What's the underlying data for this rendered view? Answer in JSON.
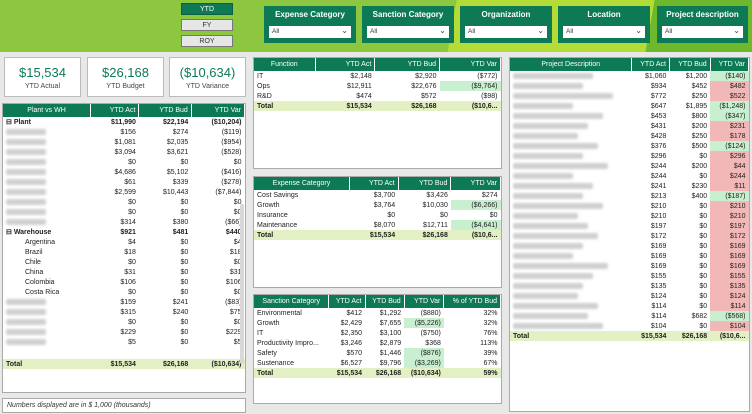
{
  "period_buttons": [
    "YTD",
    "FY",
    "ROY"
  ],
  "slicers": [
    {
      "title": "Expense Category",
      "value": "All"
    },
    {
      "title": "Sanction Category",
      "value": "All"
    },
    {
      "title": "Organization",
      "value": "All"
    },
    {
      "title": "Location",
      "value": "All"
    },
    {
      "title": "Project description",
      "value": "All"
    }
  ],
  "cards": [
    {
      "value": "$15,534",
      "label": "YTD Actual"
    },
    {
      "value": "$26,168",
      "label": "YTD Budget"
    },
    {
      "value": "($10,634)",
      "label": "YTD Variance"
    }
  ],
  "plant_table": {
    "headers": [
      "Plant vs WH",
      "YTD Act",
      "YTD Bud",
      "YTD Var"
    ],
    "rows": [
      {
        "label": "Plant",
        "act": "$11,990",
        "bud": "$22,194",
        "var": "($10,204)",
        "group": true
      },
      {
        "label": "",
        "act": "$156",
        "bud": "$274",
        "var": "($119)"
      },
      {
        "label": "",
        "act": "$1,081",
        "bud": "$2,035",
        "var": "($954)"
      },
      {
        "label": "",
        "act": "$3,094",
        "bud": "$3,621",
        "var": "($528)"
      },
      {
        "label": "",
        "act": "$0",
        "bud": "$0",
        "var": "$0"
      },
      {
        "label": "",
        "act": "$4,686",
        "bud": "$5,102",
        "var": "($416)"
      },
      {
        "label": "",
        "act": "$61",
        "bud": "$339",
        "var": "($278)"
      },
      {
        "label": "",
        "act": "$2,599",
        "bud": "$10,443",
        "var": "($7,844)"
      },
      {
        "label": "",
        "act": "$0",
        "bud": "$0",
        "var": "$0"
      },
      {
        "label": "",
        "act": "$0",
        "bud": "$0",
        "var": "$0"
      },
      {
        "label": "",
        "act": "$314",
        "bud": "$380",
        "var": "($66)"
      },
      {
        "label": "Warehouse",
        "act": "$921",
        "bud": "$481",
        "var": "$440",
        "group": true
      },
      {
        "label": "Argentina",
        "act": "$4",
        "bud": "$0",
        "var": "$4"
      },
      {
        "label": "Brazil",
        "act": "$18",
        "bud": "$0",
        "var": "$18"
      },
      {
        "label": "Chile",
        "act": "$0",
        "bud": "$0",
        "var": "$0"
      },
      {
        "label": "China",
        "act": "$31",
        "bud": "$0",
        "var": "$31"
      },
      {
        "label": "Colombia",
        "act": "$106",
        "bud": "$0",
        "var": "$106"
      },
      {
        "label": "Costa Rica",
        "act": "$0",
        "bud": "$0",
        "var": "$0"
      },
      {
        "label": "",
        "act": "$159",
        "bud": "$241",
        "var": "($83)"
      },
      {
        "label": "",
        "act": "$315",
        "bud": "$240",
        "var": "$75"
      },
      {
        "label": "",
        "act": "$0",
        "bud": "$0",
        "var": "$0"
      },
      {
        "label": "",
        "act": "$229",
        "bud": "$0",
        "var": "$229"
      },
      {
        "label": "",
        "act": "$5",
        "bud": "$0",
        "var": "$5"
      }
    ],
    "total": {
      "label": "Total",
      "act": "$15,534",
      "bud": "$26,168",
      "var": "($10,634)"
    }
  },
  "function_table": {
    "headers": [
      "Function",
      "YTD Act",
      "YTD Bud",
      "YTD Var"
    ],
    "rows": [
      {
        "label": "IT",
        "act": "$2,148",
        "bud": "$2,920",
        "var": "($772)"
      },
      {
        "label": "Ops",
        "act": "$12,911",
        "bud": "$22,676",
        "var": "($9,764)"
      },
      {
        "label": "R&D",
        "act": "$474",
        "bud": "$572",
        "var": "($98)"
      }
    ],
    "total": {
      "label": "Total",
      "act": "$15,534",
      "bud": "$26,168",
      "var": "($10,6..."
    }
  },
  "expense_table": {
    "headers": [
      "Expense Category",
      "YTD Act",
      "YTD Bud",
      "YTD Var"
    ],
    "rows": [
      {
        "label": "Cost Savings",
        "act": "$3,700",
        "bud": "$3,426",
        "var": "$274"
      },
      {
        "label": "Growth",
        "act": "$3,764",
        "bud": "$10,030",
        "var": "($6,266)"
      },
      {
        "label": "Insurance",
        "act": "$0",
        "bud": "$0",
        "var": "$0"
      },
      {
        "label": "Maintenance",
        "act": "$8,070",
        "bud": "$12,711",
        "var": "($4,641)"
      }
    ],
    "total": {
      "label": "Total",
      "act": "$15,534",
      "bud": "$26,168",
      "var": "($10,6..."
    }
  },
  "sanction_table": {
    "headers": [
      "Sanction Category",
      "YTD Act",
      "YTD Bud",
      "YTD Var",
      "% of YTD Bud"
    ],
    "rows": [
      {
        "label": "Environmental",
        "act": "$412",
        "bud": "$1,292",
        "var": "($880)",
        "pct": "32%"
      },
      {
        "label": "Growth",
        "act": "$2,429",
        "bud": "$7,655",
        "var": "($5,226)",
        "pct": "32%"
      },
      {
        "label": "IT",
        "act": "$2,350",
        "bud": "$3,100",
        "var": "($750)",
        "pct": "76%"
      },
      {
        "label": "Productivity Impro...",
        "act": "$3,246",
        "bud": "$2,879",
        "var": "$368",
        "pct": "113%"
      },
      {
        "label": "Safety",
        "act": "$570",
        "bud": "$1,446",
        "var": "($876)",
        "pct": "39%"
      },
      {
        "label": "Sustenance",
        "act": "$6,527",
        "bud": "$9,796",
        "var": "($3,269)",
        "pct": "67%"
      }
    ],
    "total": {
      "label": "Total",
      "act": "$15,534",
      "bud": "$26,168",
      "var": "($10,634)",
      "pct": "59%"
    }
  },
  "project_table": {
    "headers": [
      "Project Description",
      "YTD Act",
      "YTD Bud",
      "YTD Var"
    ],
    "rows": [
      {
        "act": "$1,060",
        "bud": "$1,200",
        "var": "($140)"
      },
      {
        "act": "$934",
        "bud": "$452",
        "var": "$482"
      },
      {
        "act": "$772",
        "bud": "$250",
        "var": "$522"
      },
      {
        "act": "$647",
        "bud": "$1,895",
        "var": "($1,248)"
      },
      {
        "act": "$453",
        "bud": "$800",
        "var": "($347)"
      },
      {
        "act": "$431",
        "bud": "$200",
        "var": "$231"
      },
      {
        "act": "$428",
        "bud": "$250",
        "var": "$178"
      },
      {
        "act": "$376",
        "bud": "$500",
        "var": "($124)"
      },
      {
        "act": "$296",
        "bud": "$0",
        "var": "$296"
      },
      {
        "act": "$244",
        "bud": "$200",
        "var": "$44"
      },
      {
        "act": "$244",
        "bud": "$0",
        "var": "$244"
      },
      {
        "act": "$241",
        "bud": "$230",
        "var": "$11"
      },
      {
        "act": "$213",
        "bud": "$400",
        "var": "($187)"
      },
      {
        "act": "$210",
        "bud": "$0",
        "var": "$210"
      },
      {
        "act": "$210",
        "bud": "$0",
        "var": "$210"
      },
      {
        "act": "$197",
        "bud": "$0",
        "var": "$197"
      },
      {
        "act": "$172",
        "bud": "$0",
        "var": "$172"
      },
      {
        "act": "$169",
        "bud": "$0",
        "var": "$169"
      },
      {
        "act": "$169",
        "bud": "$0",
        "var": "$169"
      },
      {
        "act": "$169",
        "bud": "$0",
        "var": "$169"
      },
      {
        "act": "$155",
        "bud": "$0",
        "var": "$155"
      },
      {
        "act": "$135",
        "bud": "$0",
        "var": "$135"
      },
      {
        "act": "$124",
        "bud": "$0",
        "var": "$124"
      },
      {
        "act": "$114",
        "bud": "$0",
        "var": "$114"
      },
      {
        "act": "$114",
        "bud": "$682",
        "var": "($568)"
      },
      {
        "act": "$104",
        "bud": "$0",
        "var": "$104"
      }
    ],
    "total": {
      "label": "Total",
      "act": "$15,534",
      "bud": "$26,168",
      "var": "($10,6..."
    }
  },
  "footnote": "Numbers displayed are in $ 1,000 (thousands)"
}
